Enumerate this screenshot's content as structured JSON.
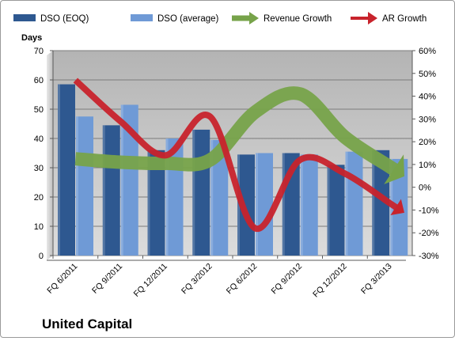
{
  "chart_data": {
    "type": "bar",
    "title": "United Capital",
    "y_left_label": "Days",
    "y_left_lim": [
      0,
      70
    ],
    "y_left_ticks": [
      "0",
      "10",
      "20",
      "30",
      "40",
      "50",
      "60",
      "70"
    ],
    "y_right_lim": [
      -30,
      60
    ],
    "y_right_ticks": [
      "-30%",
      "-20%",
      "-10%",
      "0%",
      "10%",
      "20%",
      "30%",
      "40%",
      "50%",
      "60%"
    ],
    "categories": [
      "FQ 6/2011",
      "FQ 9/2011",
      "FQ 12/2011",
      "FQ 3/2012",
      "FQ 6/2012",
      "FQ 9/2012",
      "FQ 12/2012",
      "FQ 3/2013"
    ],
    "series": [
      {
        "name": "DSO (EOQ)",
        "kind": "bar",
        "axis": "left",
        "color": "#2e5890",
        "values": [
          58.5,
          44.5,
          36,
          43,
          34.5,
          35,
          31,
          36
        ]
      },
      {
        "name": "DSO (average)",
        "kind": "bar",
        "axis": "left",
        "color": "#6f9ad6",
        "values": [
          47.5,
          51.5,
          40,
          39.5,
          35,
          34.5,
          35.5,
          33
        ]
      },
      {
        "name": "Revenue Growth",
        "kind": "arrow",
        "axis": "right",
        "color": "#77a34a",
        "values": [
          12.5,
          11,
          10.5,
          12,
          33,
          41,
          22,
          9
        ]
      },
      {
        "name": "AR Growth",
        "kind": "arrow",
        "axis": "right",
        "color": "#c8232c",
        "values": [
          47,
          29,
          14,
          31,
          -18,
          12,
          6,
          -7
        ]
      }
    ],
    "grid": true,
    "legend_position": "top"
  }
}
